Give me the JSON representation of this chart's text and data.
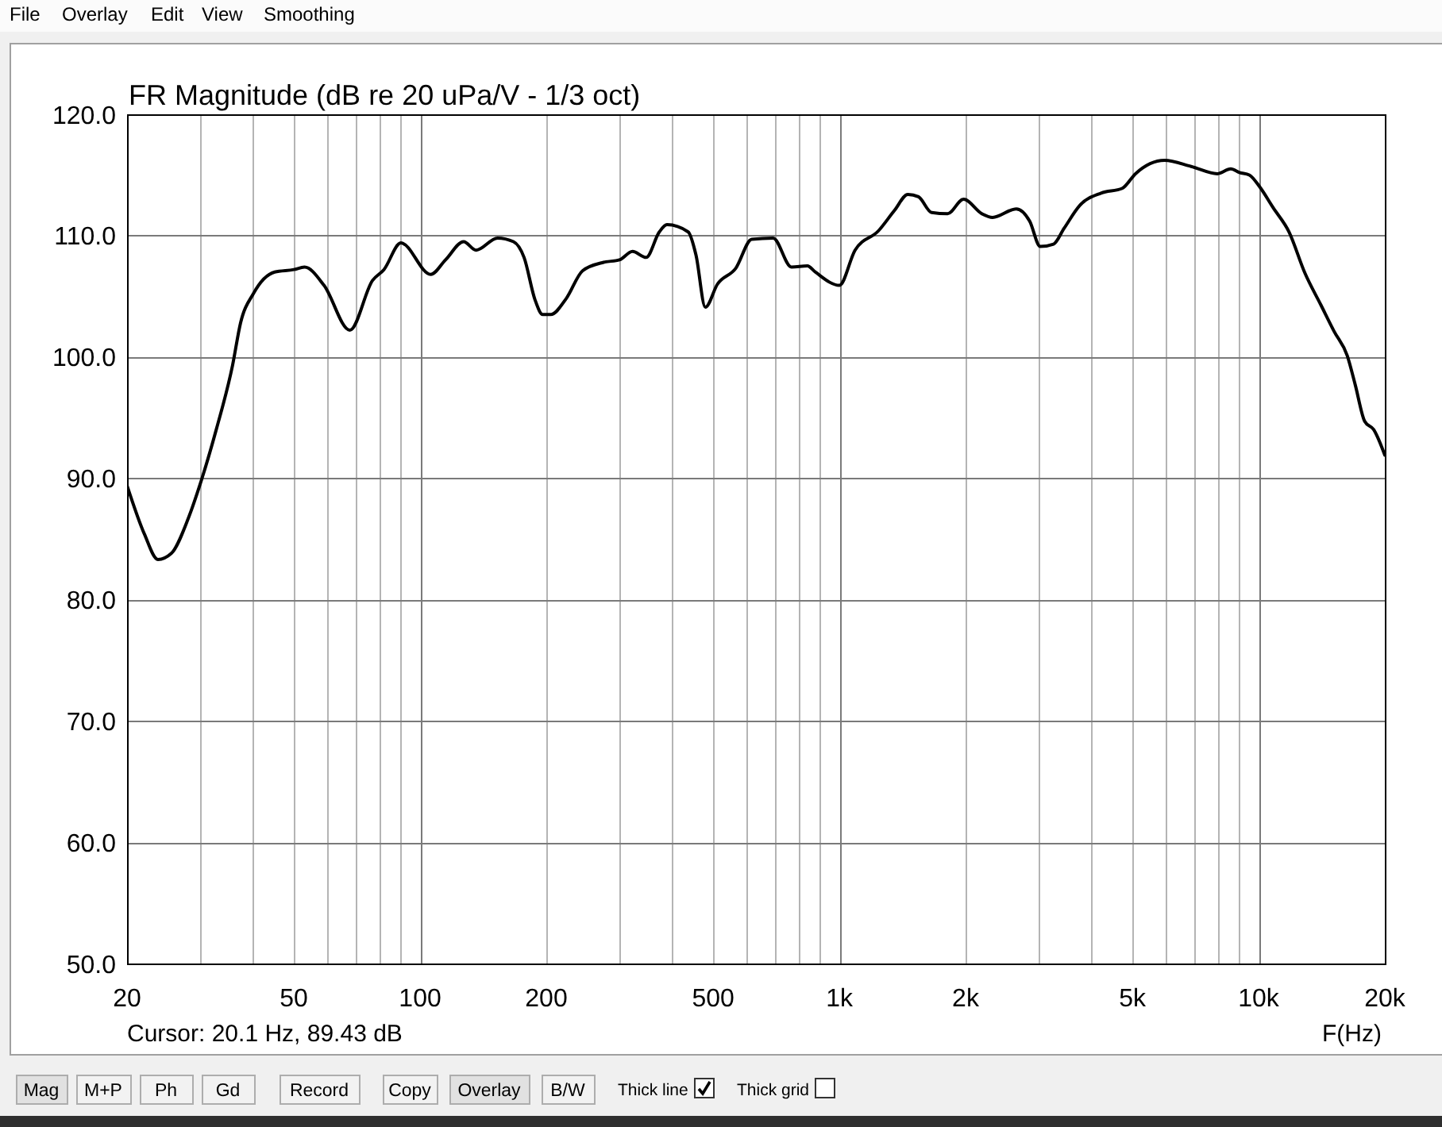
{
  "chart_data": {
    "type": "line",
    "title": "FR Magnitude (dB re 20 uPa/V - 1/3 oct)",
    "xlabel": "F(Hz)",
    "x": [
      20,
      22,
      23.7,
      25.5,
      28,
      30,
      32.7,
      35.7,
      37.3,
      40,
      45,
      50,
      53,
      59,
      68,
      77,
      82,
      90,
      106,
      115,
      127,
      136,
      153,
      167,
      177,
      188,
      196,
      205,
      223,
      244,
      274,
      299,
      321,
      346,
      372,
      388,
      436,
      455,
      479,
      512,
      566,
      618,
      695,
      769,
      839,
      876,
      1000,
      1090,
      1240,
      1355,
      1457,
      1544,
      1660,
      1812,
      1978,
      2188,
      2320,
      2643,
      2843,
      3014,
      3242,
      3436,
      3748,
      4209,
      4731,
      5085,
      5966,
      6902,
      7978,
      8582,
      9000,
      9500,
      10070,
      10830,
      11820,
      12900,
      14070,
      15140,
      16270,
      17000,
      17900,
      18820,
      20000
    ],
    "values": [
      89.4,
      85.4,
      83.3,
      83.8,
      86.7,
      89.7,
      94.1,
      99.3,
      102.8,
      105.2,
      107.0,
      107.2,
      107.4,
      105.9,
      102.2,
      106.3,
      107.2,
      109.4,
      106.8,
      108.0,
      109.5,
      108.8,
      109.8,
      109.5,
      108.2,
      104.7,
      103.5,
      103.5,
      104.8,
      107.1,
      107.8,
      108.0,
      108.7,
      108.2,
      110.3,
      110.9,
      110.3,
      108.4,
      104.1,
      106.0,
      107.3,
      109.7,
      109.8,
      107.4,
      107.5,
      107.0,
      105.9,
      108.8,
      110.4,
      112.1,
      113.4,
      113.2,
      111.9,
      111.8,
      113.0,
      111.8,
      111.5,
      112.2,
      111.2,
      109.1,
      109.3,
      110.6,
      112.5,
      113.5,
      113.9,
      115.1,
      116.2,
      115.7,
      115.1,
      115.5,
      115.2,
      115.0,
      114.0,
      112.3,
      110.3,
      106.9,
      104.3,
      102.1,
      100.1,
      97.7,
      94.7,
      94.0,
      91.9
    ],
    "color": "#000000",
    "log": "x",
    "xlim": [
      20,
      20000
    ],
    "ylim": [
      50,
      120
    ],
    "xticks": [
      20,
      {
        "value": 30,
        "label": null
      },
      {
        "value": 40,
        "label": null
      },
      50,
      {
        "value": 60,
        "label": null
      },
      {
        "value": 70,
        "label": null
      },
      {
        "value": 80,
        "label": null
      },
      {
        "value": 90,
        "label": null
      },
      100,
      200,
      {
        "value": 300,
        "label": null
      },
      {
        "value": 400,
        "label": null
      },
      500,
      {
        "value": 600,
        "label": null
      },
      {
        "value": 700,
        "label": null
      },
      {
        "value": 800,
        "label": null
      },
      {
        "value": 900,
        "label": null
      },
      {
        "value": 1000,
        "label": "1k"
      },
      {
        "value": 2000,
        "label": "2k"
      },
      {
        "value": 3000,
        "label": null
      },
      {
        "value": 4000,
        "label": null
      },
      {
        "value": 5000,
        "label": "5k"
      },
      {
        "value": 6000,
        "label": null
      },
      {
        "value": 7000,
        "label": null
      },
      {
        "value": 8000,
        "label": null
      },
      {
        "value": 9000,
        "label": null
      },
      {
        "value": 10000,
        "label": "10k"
      },
      {
        "value": 20000,
        "label": "20k"
      }
    ],
    "yticks": [
      {
        "value": 50,
        "label": "50.0"
      },
      {
        "value": 60,
        "label": "60.0"
      },
      {
        "value": 70,
        "label": "70.0"
      },
      {
        "value": 80,
        "label": "80.0"
      },
      {
        "value": 90,
        "label": "90.0"
      },
      {
        "value": 100,
        "label": "100.0"
      },
      {
        "value": 110,
        "label": "110.0"
      },
      {
        "value": 120,
        "label": "120.0"
      }
    ],
    "grid": true,
    "annotations": [
      "Cursor: 20.1 Hz, 89.43 dB",
      "File",
      "Overlay",
      "Edit",
      "View",
      "Smoothing",
      "Mag",
      "M+P",
      "Ph",
      "Gd",
      "Record",
      "Copy",
      "Overlay",
      "B/W",
      "Thick line",
      "Thick grid"
    ]
  }
}
